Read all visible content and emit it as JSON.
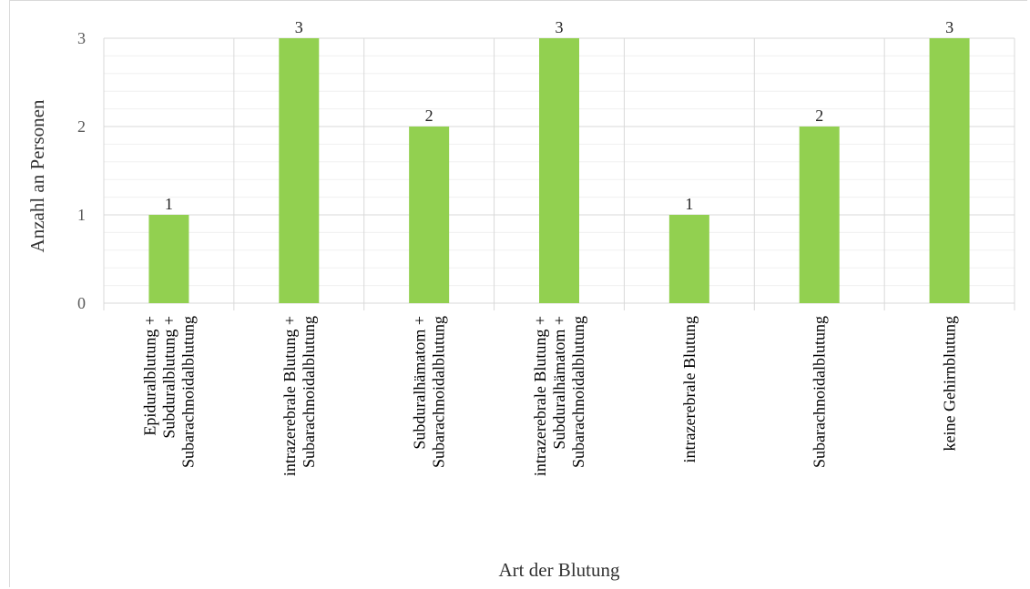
{
  "chart_data": {
    "type": "bar",
    "categories": [
      [
        "Epiduralblutung +",
        "Subduralblutung +",
        "Subarachnoidalblutung"
      ],
      [
        "intrazerebrale Blutung +",
        "Subarachnoidalblutung"
      ],
      [
        "Subduralhämatom +",
        "Subarachnoidalblutung"
      ],
      [
        "intrazerebrale Blutung +",
        "Subduralhämatom +",
        "Subarachnoidalblutung"
      ],
      [
        "intrazerebrale Blutung"
      ],
      [
        "Subarachnoidalblutung"
      ],
      [
        "keine Gehirnblutung"
      ]
    ],
    "values": [
      1,
      3,
      2,
      3,
      1,
      2,
      3
    ],
    "data_labels": [
      "1",
      "3",
      "2",
      "3",
      "1",
      "2",
      "3"
    ],
    "xlabel": "Art der Blutung",
    "ylabel": "Anzahl an Personen",
    "ylim": [
      0,
      3
    ],
    "yticks": [
      "0",
      "1",
      "2",
      "3"
    ],
    "grid": true,
    "legend": "none",
    "colors": {
      "bar": "#92d050",
      "major_grid": "#d9d9d9",
      "minor_grid": "#f0f0f0"
    }
  }
}
